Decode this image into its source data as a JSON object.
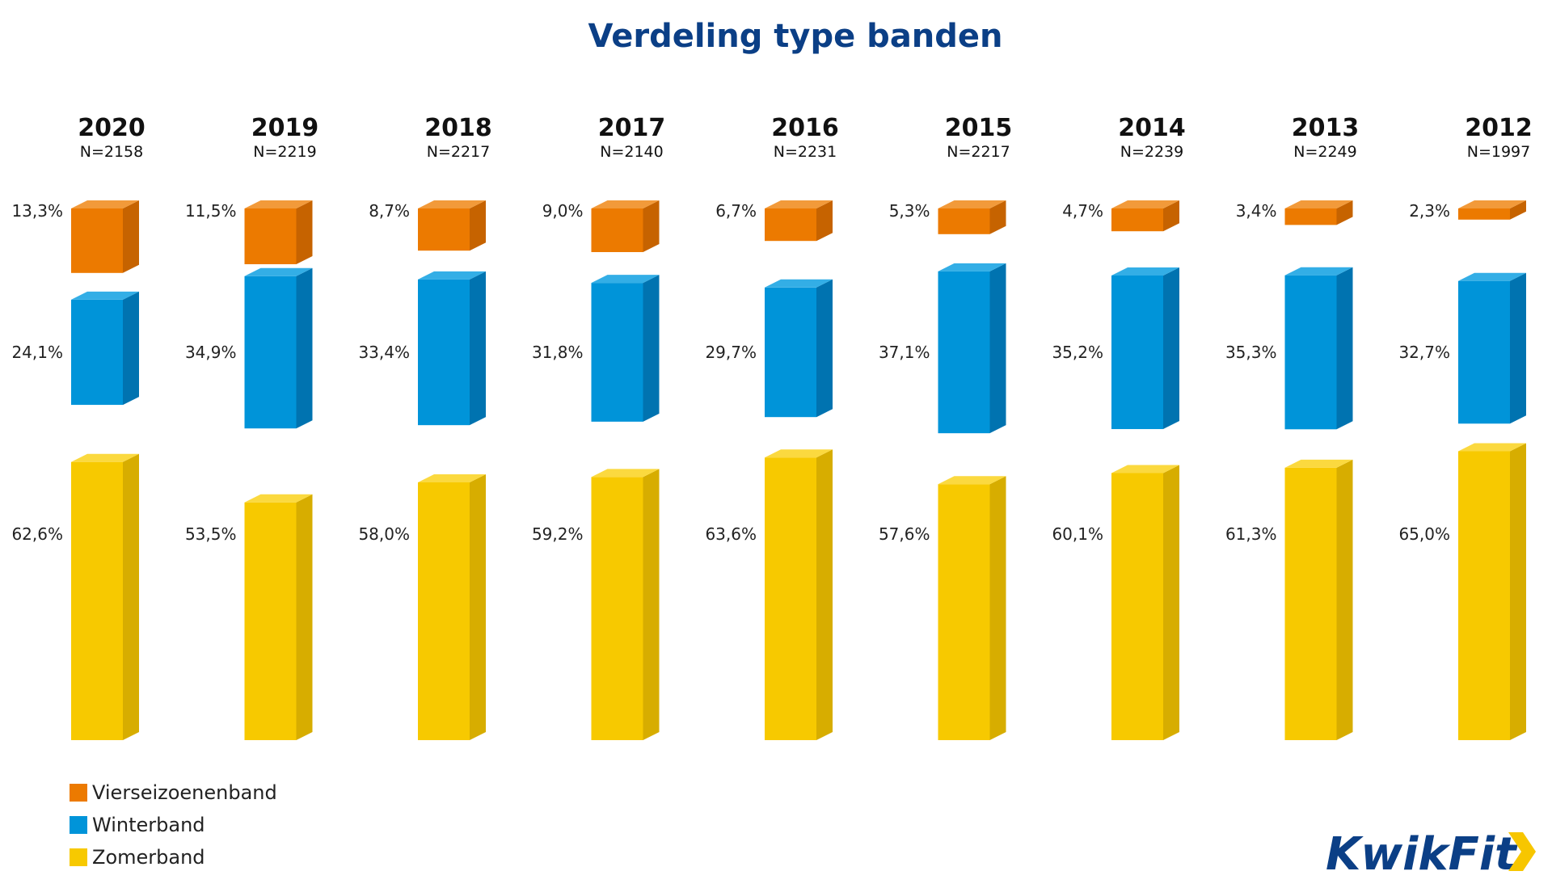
{
  "title": "Verdeling type banden",
  "logo": {
    "text": "KwikFit",
    "colors": {
      "text": "#0b3f86",
      "chevron": "#f7c600"
    }
  },
  "colors": {
    "Vierseizoenenband": {
      "front": "#ec7a00",
      "side": "#c66300",
      "top": "#f29a3a"
    },
    "Winterband": {
      "front": "#0094d9",
      "side": "#0073b0",
      "top": "#33aee6"
    },
    "Zomerband": {
      "front": "#f7c900",
      "side": "#d7ad00",
      "top": "#fbd93f"
    }
  },
  "chart_data": {
    "type": "bar",
    "title": "Verdeling type banden",
    "categories": [
      "2020",
      "2019",
      "2018",
      "2017",
      "2016",
      "2015",
      "2014",
      "2013",
      "2012"
    ],
    "n_labels": [
      "N=2158",
      "N=2219",
      "N=2217",
      "N=2140",
      "N=2231",
      "N=2217",
      "N=2239",
      "N=2249",
      "N=1997"
    ],
    "series": [
      {
        "name": "Vierseizoenenband",
        "values": [
          13.3,
          11.5,
          8.7,
          9.0,
          6.7,
          5.3,
          4.7,
          3.4,
          2.3
        ],
        "labels": [
          "13,3%",
          "11,5%",
          "8,7%",
          "9,0%",
          "6,7%",
          "5,3%",
          "4,7%",
          "3,4%",
          "2,3%"
        ]
      },
      {
        "name": "Winterband",
        "values": [
          24.1,
          34.9,
          33.4,
          31.8,
          29.7,
          37.1,
          35.2,
          35.3,
          32.7
        ],
        "labels": [
          "24,1%",
          "34,9%",
          "33,4%",
          "31,8%",
          "29,7%",
          "37,1%",
          "35,2%",
          "35,3%",
          "32,7%"
        ]
      },
      {
        "name": "Zomerband",
        "values": [
          62.6,
          53.5,
          58.0,
          59.2,
          63.6,
          57.6,
          60.1,
          61.3,
          65.0
        ],
        "labels": [
          "62,6%",
          "53,5%",
          "58,0%",
          "59,2%",
          "63,6%",
          "57,6%",
          "60,1%",
          "61,3%",
          "65,0%"
        ]
      }
    ],
    "legend": [
      "Vierseizoenenband",
      "Winterband",
      "Zomerband"
    ],
    "legend_position": "bottom-left",
    "grid": false
  }
}
